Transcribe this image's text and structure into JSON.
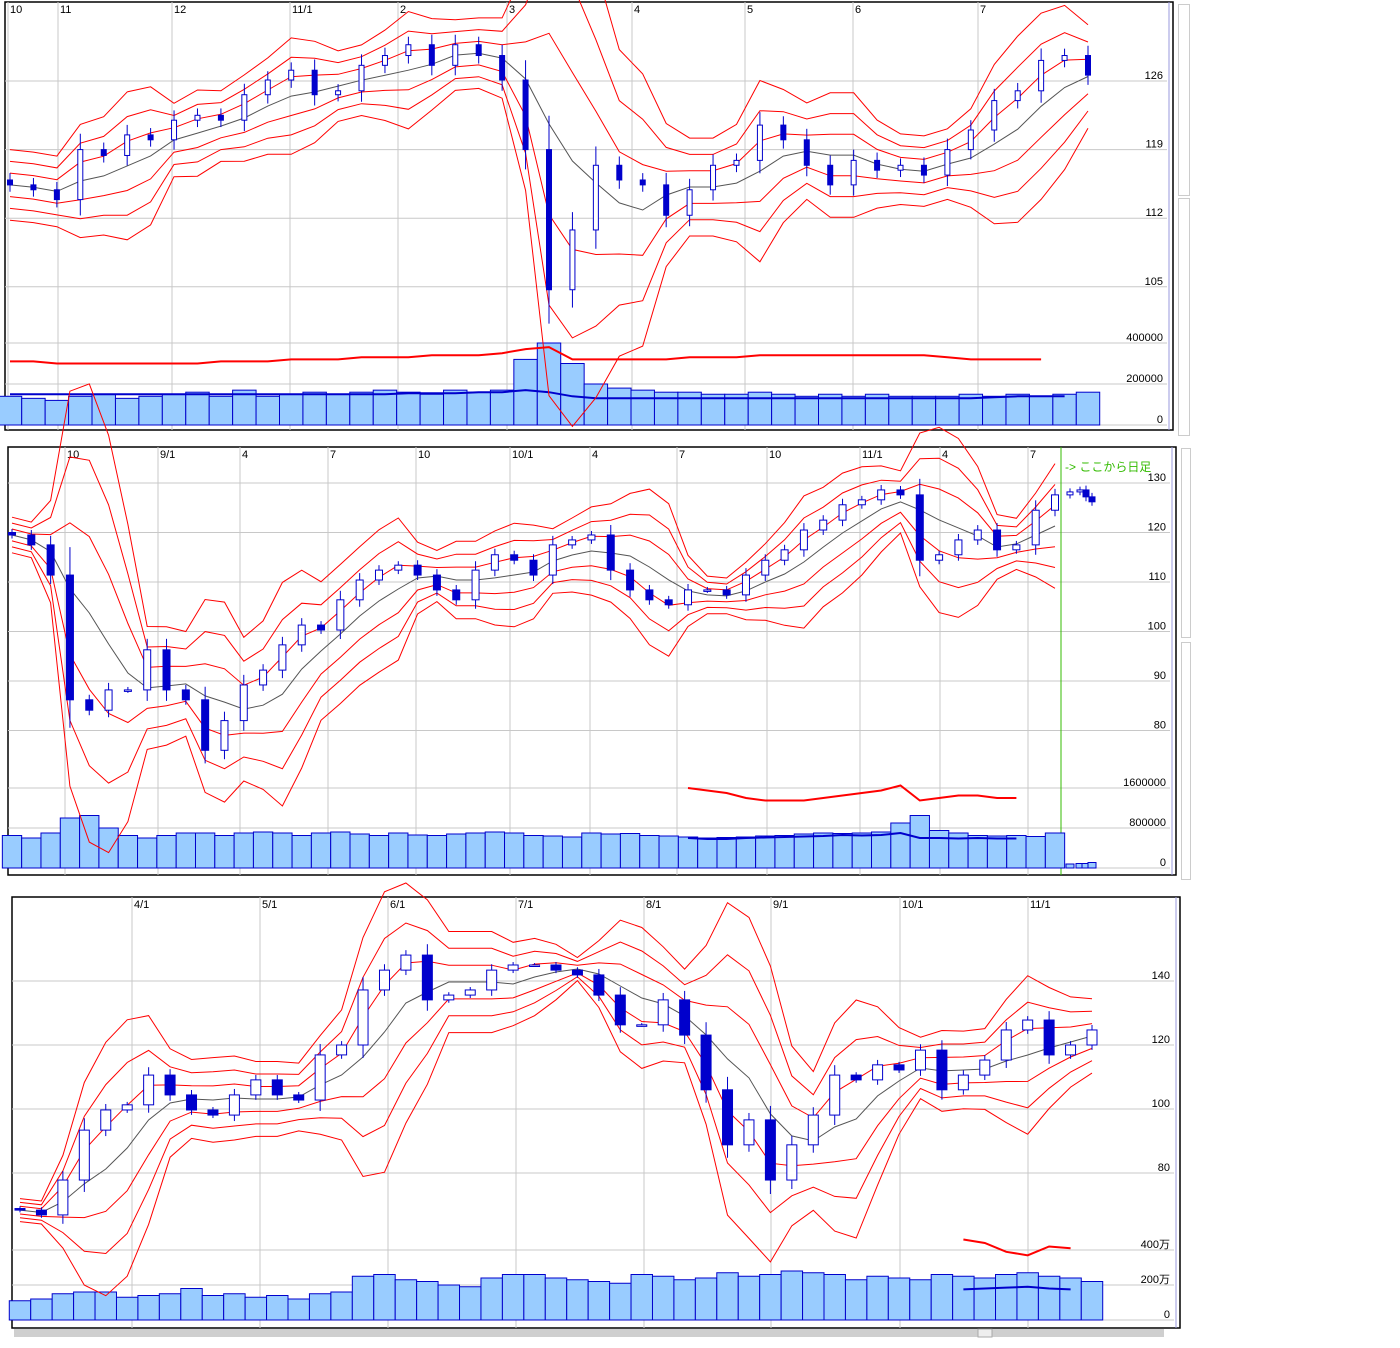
{
  "colors": {
    "band": "#ff0000",
    "mid": "#555555",
    "candle": "#0000cc",
    "volume_fill": "#99ccff",
    "volume_edge": "#0000cc",
    "grid": "#c8c8c8",
    "daily_marker": "#33bb00"
  },
  "chart_data": [
    {
      "type": "candlestick",
      "x_ticks": [
        "10",
        "11",
        "12",
        "11/1",
        "2",
        "3",
        "4",
        "5",
        "6",
        "7"
      ],
      "y_ticks": [
        "126",
        "119",
        "112",
        "105"
      ],
      "volume_ticks": [
        "400000",
        "200000",
        "0"
      ],
      "bollinger_sigmas": [
        1,
        2,
        3
      ],
      "close": [
        115.4,
        114.9,
        113.9,
        119,
        118.4,
        120.5,
        120,
        122,
        122.5,
        122,
        124.6,
        126.1,
        127.1,
        124.6,
        125,
        127.6,
        128.6,
        129.7,
        127.6,
        129.7,
        128.6,
        126.1,
        119,
        104.7,
        110.8,
        117.4,
        115.9,
        115.4,
        112.3,
        114.9,
        117.4,
        117.9,
        121.5,
        120,
        117.4,
        115.4,
        117.9,
        116.9,
        117.4,
        116.4,
        119,
        121,
        124,
        125,
        128.1,
        128.6,
        126.6
      ],
      "volume": [
        140000,
        130000,
        120000,
        140000,
        150000,
        130000,
        140000,
        150000,
        160000,
        140000,
        170000,
        140000,
        150000,
        160000,
        150000,
        160000,
        170000,
        160000,
        150000,
        170000,
        160000,
        170000,
        320000,
        400000,
        300000,
        200000,
        180000,
        170000,
        160000,
        160000,
        150000,
        150000,
        160000,
        150000,
        140000,
        150000,
        140000,
        150000,
        140000,
        140000,
        140000,
        150000,
        140000,
        150000,
        140000,
        150000,
        160000
      ],
      "volume_line_red": [
        310000,
        310000,
        300000,
        300000,
        300000,
        300000,
        300000,
        300000,
        300000,
        310000,
        310000,
        310000,
        320000,
        320000,
        320000,
        330000,
        330000,
        330000,
        340000,
        340000,
        340000,
        350000,
        370000,
        380000,
        320000,
        320000,
        320000,
        320000,
        320000,
        330000,
        330000,
        330000,
        340000,
        340000,
        340000,
        340000,
        340000,
        340000,
        340000,
        340000,
        330000,
        320000,
        320000,
        320000,
        320000,
        null,
        null
      ],
      "volume_line_blue": [
        150000,
        150000,
        150000,
        150000,
        150000,
        150000,
        150000,
        150000,
        150000,
        150000,
        150000,
        150000,
        150000,
        150000,
        150000,
        150000,
        150000,
        155000,
        155000,
        155000,
        160000,
        160000,
        170000,
        160000,
        140000,
        130000,
        130000,
        130000,
        130000,
        130000,
        130000,
        130000,
        130000,
        130000,
        130000,
        130000,
        130000,
        130000,
        130000,
        130000,
        130000,
        130000,
        135000,
        140000,
        140000,
        140000,
        null
      ]
    },
    {
      "type": "candlestick",
      "x_ticks": [
        "10",
        "9/1",
        "4",
        "7",
        "10",
        "10/1",
        "4",
        "7",
        "10",
        "11/1",
        "4",
        "7"
      ],
      "y_ticks": [
        "130",
        "120",
        "110",
        "100",
        "90",
        "80"
      ],
      "volume_ticks": [
        "1600000",
        "800000",
        "0"
      ],
      "annotation": "-> ここから日足",
      "bollinger_sigmas": [
        1,
        2,
        3
      ],
      "daily_from_index": 55,
      "close": [
        119.5,
        117.5,
        111.4,
        86.2,
        84.1,
        88.2,
        88.2,
        96.3,
        88.2,
        86.2,
        76,
        82,
        89.2,
        92.2,
        97.3,
        101.3,
        100.3,
        106.4,
        110.4,
        112.4,
        113.4,
        111.4,
        108.4,
        106.4,
        112.4,
        115.5,
        114.4,
        111.4,
        117.5,
        118.5,
        119.5,
        112.4,
        108.4,
        106.4,
        105.4,
        108.4,
        108.4,
        107.4,
        111.4,
        114.4,
        116.5,
        120.5,
        122.5,
        125.6,
        126.6,
        128.6,
        127.6,
        114.4,
        115.5,
        118.5,
        120.5,
        116.5,
        117.5,
        124.5,
        127.6,
        128.2,
        128.6,
        127.2,
        126.2
      ],
      "volume": [
        650000,
        600000,
        700000,
        1000000,
        1050000,
        800000,
        650000,
        600000,
        650000,
        700000,
        700000,
        650000,
        700000,
        720000,
        700000,
        650000,
        700000,
        720000,
        680000,
        650000,
        700000,
        660000,
        650000,
        680000,
        700000,
        720000,
        700000,
        650000,
        640000,
        620000,
        700000,
        680000,
        690000,
        650000,
        640000,
        620000,
        600000,
        610000,
        620000,
        640000,
        650000,
        680000,
        700000,
        690000,
        700000,
        720000,
        900000,
        1050000,
        750000,
        700000,
        650000,
        640000,
        650000,
        630000,
        700000,
        80000,
        90000,
        90000,
        110000
      ],
      "volume_line_red": [
        null,
        null,
        null,
        null,
        null,
        null,
        null,
        null,
        null,
        null,
        null,
        null,
        null,
        null,
        null,
        null,
        null,
        null,
        null,
        null,
        null,
        null,
        null,
        null,
        null,
        null,
        null,
        null,
        null,
        null,
        null,
        null,
        null,
        null,
        null,
        1600000,
        1550000,
        1500000,
        1400000,
        1350000,
        1350000,
        1350000,
        1400000,
        1450000,
        1500000,
        1550000,
        1650000,
        1350000,
        1400000,
        1450000,
        1450000,
        1400000,
        1400000,
        null,
        null,
        null,
        null,
        null,
        null
      ],
      "volume_line_blue": [
        null,
        null,
        null,
        null,
        null,
        null,
        null,
        null,
        null,
        null,
        null,
        null,
        null,
        null,
        null,
        null,
        null,
        null,
        null,
        null,
        null,
        null,
        null,
        null,
        null,
        null,
        null,
        null,
        null,
        null,
        null,
        null,
        null,
        null,
        null,
        600000,
        580000,
        580000,
        600000,
        610000,
        620000,
        630000,
        640000,
        660000,
        650000,
        660000,
        700000,
        600000,
        600000,
        590000,
        600000,
        590000,
        590000,
        null,
        null,
        null,
        null,
        null,
        null
      ]
    },
    {
      "type": "candlestick",
      "x_ticks": [
        "4/1",
        "5/1",
        "6/1",
        "7/1",
        "8/1",
        "9/1",
        "10/1",
        "11/1"
      ],
      "y_ticks": [
        "140",
        "120",
        "100",
        "80"
      ],
      "volume_ticks": [
        "400万",
        "200万",
        "0"
      ],
      "volume_unit": "万",
      "bollinger_sigmas": [
        1,
        2,
        3
      ],
      "close": [
        68.4,
        66.9,
        77.8,
        93.4,
        99.7,
        101.3,
        110.6,
        104.4,
        99.7,
        98.1,
        104.4,
        109.1,
        104.4,
        102.8,
        116.9,
        120,
        137.2,
        143.4,
        148.1,
        134.1,
        135.6,
        137.2,
        143.4,
        145,
        145,
        143.4,
        141.9,
        135.6,
        126.3,
        126.3,
        134.1,
        123.1,
        106,
        88.8,
        96.6,
        77.8,
        88.8,
        98.1,
        110.6,
        109.1,
        113.8,
        112.2,
        118.4,
        106,
        110.6,
        115.3,
        124.7,
        127.8,
        116.9,
        120,
        124.7
      ],
      "volume": [
        110,
        120,
        150,
        160,
        160,
        130,
        140,
        150,
        180,
        140,
        150,
        130,
        140,
        120,
        150,
        160,
        250,
        260,
        230,
        220,
        200,
        190,
        240,
        260,
        260,
        240,
        230,
        220,
        210,
        260,
        250,
        230,
        240,
        270,
        250,
        260,
        280,
        270,
        260,
        230,
        250,
        240,
        230,
        260,
        250,
        240,
        260,
        270,
        250,
        240,
        220
      ],
      "volume_line_red": [
        null,
        null,
        null,
        null,
        null,
        null,
        null,
        null,
        null,
        null,
        null,
        null,
        null,
        null,
        null,
        null,
        null,
        null,
        null,
        null,
        null,
        null,
        null,
        null,
        null,
        null,
        null,
        null,
        null,
        null,
        null,
        null,
        null,
        null,
        null,
        null,
        null,
        null,
        null,
        null,
        null,
        null,
        null,
        null,
        460,
        440,
        390,
        370,
        420,
        410,
        null
      ],
      "volume_line_blue": [
        null,
        null,
        null,
        null,
        null,
        null,
        null,
        null,
        null,
        null,
        null,
        null,
        null,
        null,
        null,
        null,
        null,
        null,
        null,
        null,
        null,
        null,
        null,
        null,
        null,
        null,
        null,
        null,
        null,
        null,
        null,
        null,
        null,
        null,
        null,
        null,
        null,
        null,
        null,
        null,
        null,
        null,
        null,
        null,
        175,
        180,
        185,
        190,
        180,
        175,
        null
      ]
    }
  ]
}
